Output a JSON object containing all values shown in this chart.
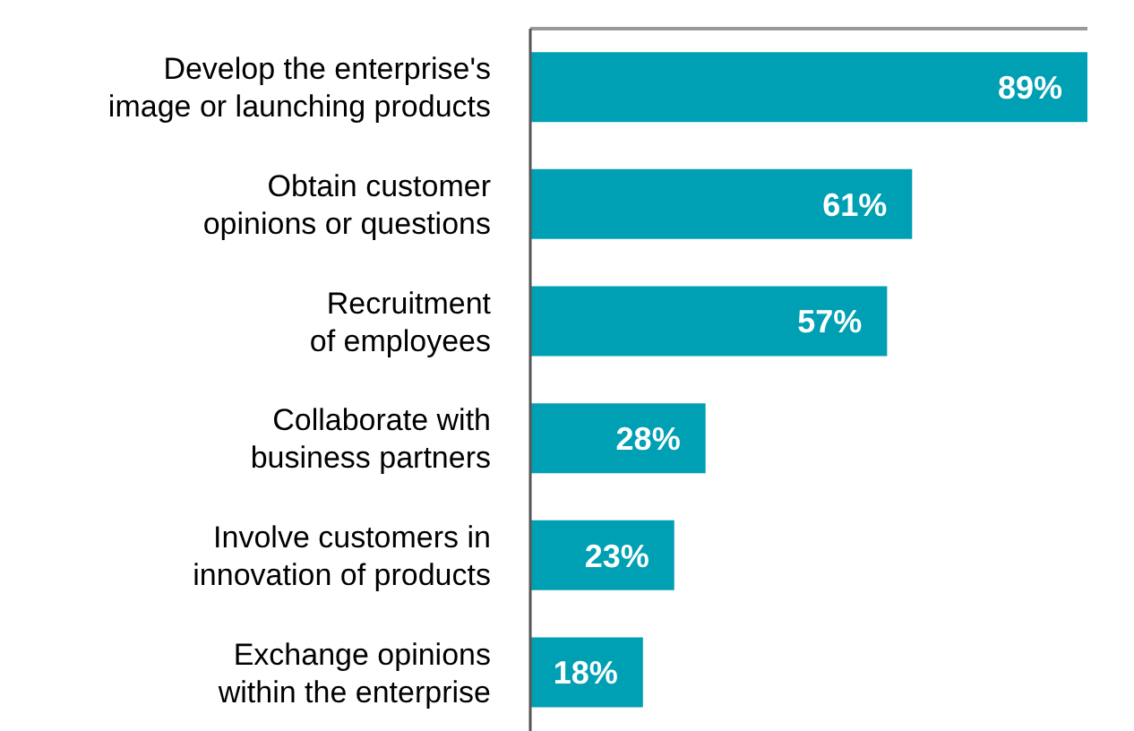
{
  "chart_data": {
    "type": "bar",
    "orientation": "horizontal",
    "categories": [
      "Develop the enterprise's\nimage or launching products",
      "Obtain customer\nopinions or questions",
      "Recruitment\nof employees",
      "Collaborate with\nbusiness partners",
      "Involve customers in\ninnovation of products",
      "Exchange opinions\nwithin the enterprise"
    ],
    "values": [
      89,
      61,
      57,
      28,
      23,
      18
    ],
    "value_labels": [
      "89%",
      "61%",
      "57%",
      "28%",
      "23%",
      "18%"
    ],
    "color": "#00a0b4"
  }
}
